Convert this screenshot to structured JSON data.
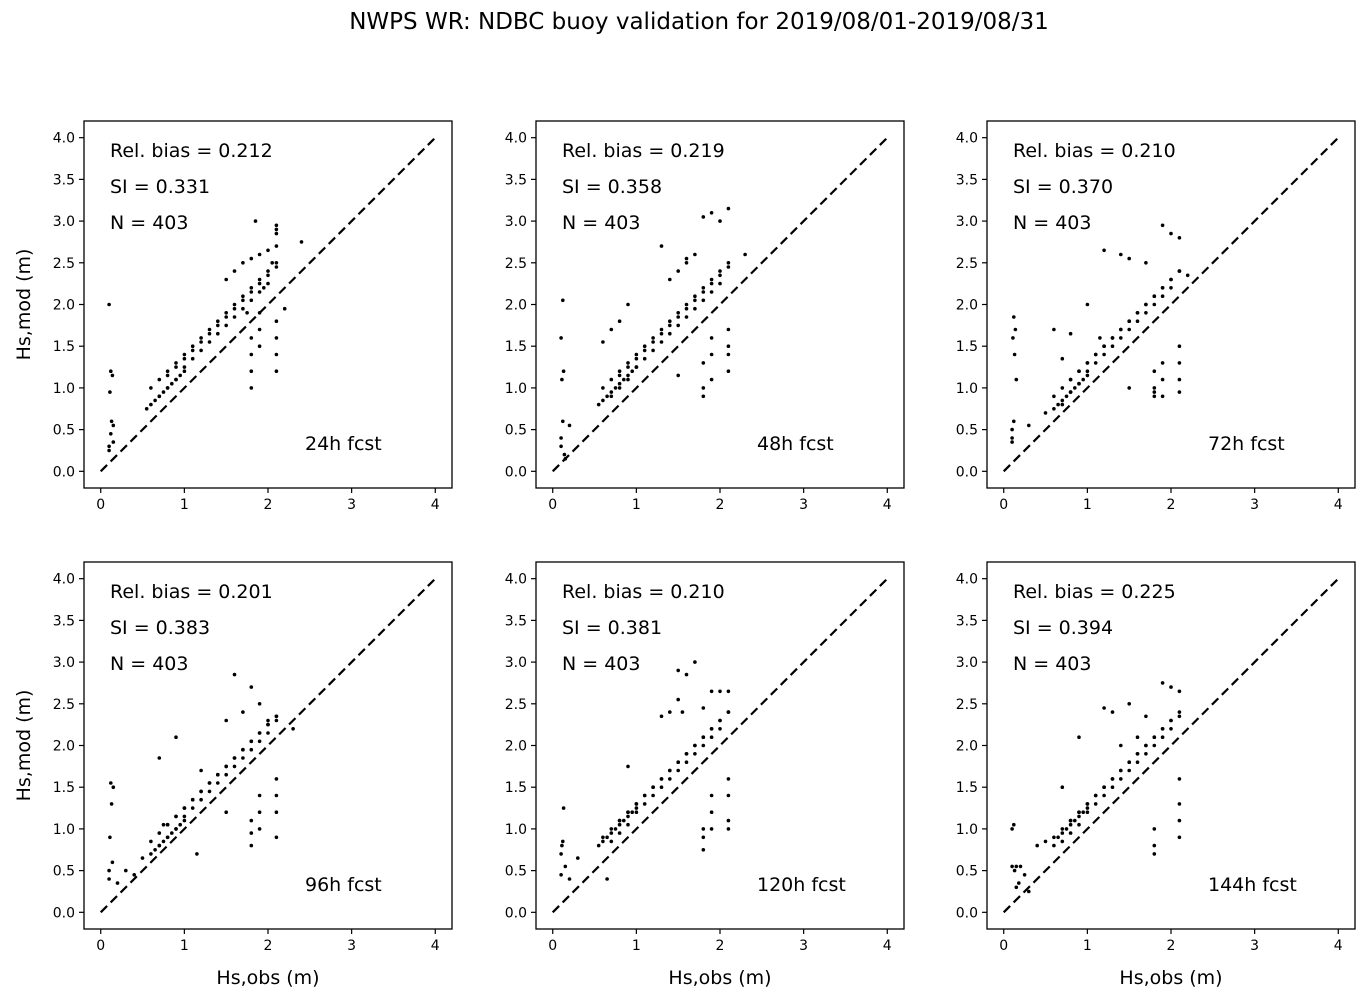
{
  "figure": {
    "title": "NWPS WR: NDBC buoy validation for 2019/08/01-2019/08/31"
  },
  "chart_data": [
    {
      "type": "scatter",
      "panel": "top-left",
      "forecast_label": "24h fcst",
      "stats": {
        "rel_bias": "Rel. bias =  0.212",
        "si": "SI =  0.331",
        "n": "N = 403"
      },
      "xlabel": "",
      "ylabel": "Hs,mod (m)",
      "xlim": [
        -0.2,
        4.2
      ],
      "ylim": [
        -0.2,
        4.2
      ],
      "xticks": [
        0,
        1,
        2,
        3,
        4
      ],
      "yticks": [
        0.0,
        0.5,
        1.0,
        1.5,
        2.0,
        2.5,
        3.0,
        3.5,
        4.0
      ],
      "reference_line": {
        "style": "dashed",
        "from": [
          0,
          0
        ],
        "to": [
          4,
          4
        ]
      },
      "x": [
        0.1,
        0.1,
        0.12,
        0.15,
        0.13,
        0.11,
        0.14,
        0.12,
        0.1,
        0.15,
        0.55,
        0.6,
        0.65,
        0.7,
        0.75,
        0.8,
        0.85,
        0.9,
        0.95,
        1.0,
        0.6,
        0.7,
        0.8,
        0.9,
        1.0,
        1.1,
        1.2,
        1.3,
        1.4,
        1.5,
        1.6,
        1.7,
        1.8,
        1.9,
        2.0,
        2.1,
        0.7,
        0.8,
        0.9,
        1.0,
        1.1,
        1.2,
        1.3,
        1.4,
        1.5,
        1.6,
        1.7,
        1.8,
        1.9,
        2.0,
        0.8,
        0.9,
        1.0,
        1.1,
        1.2,
        1.3,
        1.4,
        1.5,
        1.6,
        1.7,
        1.8,
        1.9,
        2.0,
        2.1,
        1.8,
        1.8,
        1.8,
        1.8,
        1.9,
        1.9,
        1.9,
        2.1,
        2.1,
        2.1,
        2.1,
        2.1,
        2.1,
        1.5,
        1.6,
        1.7,
        1.8,
        1.9,
        2.0,
        2.05,
        2.1,
        2.4,
        1.85,
        2.1,
        1.75,
        1.95,
        2.2
      ],
      "y": [
        0.25,
        0.3,
        0.45,
        0.55,
        0.6,
        0.95,
        1.15,
        1.2,
        2.0,
        0.35,
        0.75,
        0.8,
        0.85,
        0.9,
        0.95,
        1.0,
        1.05,
        1.1,
        1.15,
        1.2,
        1.0,
        1.1,
        1.2,
        1.3,
        1.4,
        1.5,
        1.6,
        1.7,
        1.8,
        1.9,
        2.0,
        2.1,
        2.2,
        2.3,
        2.4,
        2.5,
        0.9,
        1.0,
        1.1,
        1.25,
        1.35,
        1.45,
        1.55,
        1.65,
        1.75,
        1.85,
        1.95,
        2.05,
        2.15,
        2.25,
        1.15,
        1.25,
        1.35,
        1.45,
        1.55,
        1.65,
        1.75,
        1.85,
        1.95,
        2.05,
        2.15,
        2.25,
        2.35,
        2.45,
        1.0,
        1.2,
        1.4,
        1.6,
        1.5,
        1.7,
        1.9,
        1.2,
        1.4,
        1.6,
        1.8,
        2.7,
        2.9,
        2.3,
        2.4,
        2.5,
        2.55,
        2.6,
        2.65,
        2.5,
        2.85,
        2.75,
        3.0,
        2.95,
        1.9,
        2.2,
        1.95
      ]
    },
    {
      "type": "scatter",
      "panel": "top-middle",
      "forecast_label": "48h fcst",
      "stats": {
        "rel_bias": "Rel. bias =  0.219",
        "si": "SI =  0.358",
        "n": "N = 403"
      },
      "xlabel": "",
      "ylabel": "",
      "xlim": [
        -0.2,
        4.2
      ],
      "ylim": [
        -0.2,
        4.2
      ],
      "xticks": [
        0,
        1,
        2,
        3,
        4
      ],
      "yticks": [
        0.0,
        0.5,
        1.0,
        1.5,
        2.0,
        2.5,
        3.0,
        3.5,
        4.0
      ],
      "reference_line": {
        "style": "dashed",
        "from": [
          0,
          0
        ],
        "to": [
          4,
          4
        ]
      },
      "x": [
        0.1,
        0.1,
        0.12,
        0.15,
        0.13,
        0.11,
        0.14,
        0.12,
        0.1,
        0.2,
        0.55,
        0.6,
        0.65,
        0.7,
        0.75,
        0.8,
        0.85,
        0.9,
        0.95,
        1.0,
        0.6,
        0.7,
        0.8,
        0.9,
        1.0,
        1.1,
        1.2,
        1.3,
        1.4,
        1.5,
        1.6,
        1.7,
        1.8,
        1.9,
        2.0,
        2.1,
        0.7,
        0.8,
        0.9,
        1.0,
        1.1,
        1.2,
        1.3,
        1.4,
        1.5,
        1.6,
        1.7,
        1.8,
        1.9,
        2.0,
        0.8,
        0.9,
        1.0,
        1.1,
        1.2,
        1.3,
        1.4,
        1.5,
        1.6,
        1.7,
        1.8,
        1.9,
        2.0,
        2.1,
        1.8,
        1.8,
        1.8,
        1.9,
        1.9,
        1.9,
        2.1,
        2.1,
        2.1,
        2.1,
        1.4,
        1.5,
        1.6,
        1.7,
        1.8,
        1.9,
        2.0,
        2.1,
        2.3,
        1.3,
        1.6,
        0.7,
        0.8,
        0.9,
        0.6,
        1.5
      ],
      "y": [
        0.3,
        0.4,
        0.6,
        0.15,
        1.2,
        1.1,
        0.2,
        2.05,
        1.6,
        0.55,
        0.8,
        0.85,
        0.9,
        0.95,
        1.0,
        1.05,
        1.1,
        1.15,
        1.2,
        1.25,
        1.0,
        1.1,
        1.2,
        1.3,
        1.4,
        1.5,
        1.6,
        1.7,
        1.8,
        1.9,
        2.0,
        2.1,
        2.2,
        2.3,
        2.4,
        2.5,
        0.9,
        1.0,
        1.1,
        1.25,
        1.35,
        1.45,
        1.55,
        1.65,
        1.75,
        1.85,
        1.95,
        2.05,
        2.15,
        2.25,
        1.15,
        1.25,
        1.35,
        1.45,
        1.55,
        1.65,
        1.75,
        1.85,
        1.95,
        2.05,
        2.15,
        2.25,
        2.35,
        2.45,
        0.9,
        1.0,
        1.3,
        1.1,
        1.4,
        1.6,
        1.2,
        1.4,
        1.5,
        1.7,
        2.3,
        2.4,
        2.5,
        2.6,
        3.05,
        3.1,
        3.0,
        3.15,
        2.6,
        2.7,
        2.55,
        1.7,
        1.8,
        2.0,
        1.55,
        1.15
      ]
    },
    {
      "type": "scatter",
      "panel": "top-right",
      "forecast_label": "72h fcst",
      "stats": {
        "rel_bias": "Rel. bias =  0.210",
        "si": "SI =  0.370",
        "n": "N = 403"
      },
      "xlabel": "",
      "ylabel": "",
      "xlim": [
        -0.2,
        4.2
      ],
      "ylim": [
        -0.2,
        4.2
      ],
      "xticks": [
        0,
        1,
        2,
        3,
        4
      ],
      "yticks": [
        0.0,
        0.5,
        1.0,
        1.5,
        2.0,
        2.5,
        3.0,
        3.5,
        4.0
      ],
      "reference_line": {
        "style": "dashed",
        "from": [
          0,
          0
        ],
        "to": [
          4,
          4
        ]
      },
      "x": [
        0.1,
        0.1,
        0.12,
        0.15,
        0.13,
        0.11,
        0.14,
        0.12,
        0.1,
        0.3,
        0.5,
        0.6,
        0.65,
        0.7,
        0.75,
        0.8,
        0.85,
        0.9,
        0.95,
        1.0,
        0.6,
        0.7,
        0.8,
        0.9,
        1.0,
        1.1,
        1.2,
        1.3,
        1.4,
        1.5,
        1.6,
        1.7,
        1.8,
        1.9,
        2.0,
        2.1,
        0.7,
        0.8,
        0.9,
        1.0,
        1.1,
        1.2,
        1.3,
        1.4,
        1.5,
        1.6,
        1.7,
        1.8,
        1.9,
        2.0,
        0.8,
        0.9,
        1.0,
        1.1,
        1.2,
        1.3,
        1.4,
        1.5,
        1.6,
        1.7,
        1.8,
        1.9,
        2.0,
        2.1,
        1.8,
        1.8,
        1.8,
        1.9,
        1.9,
        1.9,
        2.1,
        2.1,
        2.1,
        2.1,
        1.2,
        1.4,
        1.5,
        1.7,
        1.9,
        2.0,
        2.1,
        2.2,
        0.6,
        0.8,
        0.7,
        1.0,
        1.15,
        1.5,
        1.8
      ],
      "y": [
        0.35,
        0.4,
        0.6,
        1.1,
        1.4,
        1.6,
        1.7,
        1.85,
        0.5,
        0.55,
        0.7,
        0.75,
        0.8,
        0.85,
        0.9,
        0.95,
        1.0,
        1.05,
        1.1,
        1.15,
        0.9,
        1.0,
        1.1,
        1.2,
        1.3,
        1.4,
        1.5,
        1.6,
        1.7,
        1.8,
        1.9,
        2.0,
        2.1,
        2.2,
        2.3,
        2.4,
        0.8,
        0.95,
        1.05,
        1.2,
        1.3,
        1.4,
        1.5,
        1.6,
        1.7,
        1.8,
        1.9,
        2.0,
        2.1,
        2.2,
        1.1,
        1.2,
        1.3,
        1.4,
        1.5,
        1.6,
        1.7,
        1.8,
        1.9,
        2.0,
        2.1,
        2.2,
        2.3,
        2.4,
        0.9,
        1.0,
        1.2,
        0.9,
        1.1,
        1.3,
        1.1,
        1.3,
        1.5,
        0.95,
        2.65,
        2.6,
        2.55,
        2.5,
        2.95,
        2.85,
        2.8,
        2.35,
        1.7,
        1.65,
        1.35,
        2.0,
        1.6,
        1.0,
        0.95
      ]
    },
    {
      "type": "scatter",
      "panel": "bottom-left",
      "forecast_label": "96h fcst",
      "stats": {
        "rel_bias": "Rel. bias =  0.201",
        "si": "SI =  0.383",
        "n": "N = 403"
      },
      "xlabel": "Hs,obs (m)",
      "ylabel": "Hs,mod (m)",
      "xlim": [
        -0.2,
        4.2
      ],
      "ylim": [
        -0.2,
        4.2
      ],
      "xticks": [
        0,
        1,
        2,
        3,
        4
      ],
      "yticks": [
        0.0,
        0.5,
        1.0,
        1.5,
        2.0,
        2.5,
        3.0,
        3.5,
        4.0
      ],
      "reference_line": {
        "style": "dashed",
        "from": [
          0,
          0
        ],
        "to": [
          4,
          4
        ]
      },
      "x": [
        0.1,
        0.1,
        0.12,
        0.15,
        0.13,
        0.11,
        0.14,
        0.2,
        0.3,
        0.4,
        0.5,
        0.6,
        0.65,
        0.7,
        0.75,
        0.8,
        0.85,
        0.9,
        0.95,
        1.0,
        0.6,
        0.7,
        0.8,
        0.9,
        1.0,
        1.1,
        1.2,
        1.3,
        1.4,
        1.5,
        1.6,
        1.7,
        1.8,
        1.9,
        2.0,
        2.1,
        0.7,
        0.8,
        0.9,
        1.0,
        1.1,
        1.2,
        1.3,
        1.4,
        1.5,
        1.6,
        1.7,
        1.8,
        1.9,
        2.0,
        0.8,
        0.9,
        1.0,
        1.1,
        1.2,
        1.3,
        1.4,
        1.5,
        1.6,
        1.7,
        1.8,
        1.9,
        2.0,
        2.1,
        1.8,
        1.8,
        1.8,
        1.9,
        1.9,
        1.9,
        2.1,
        2.1,
        2.1,
        2.1,
        1.5,
        1.6,
        1.7,
        1.8,
        1.9,
        2.0,
        2.1,
        2.3,
        0.7,
        0.9,
        1.15,
        1.2,
        1.5,
        0.75
      ],
      "y": [
        0.4,
        0.5,
        1.55,
        1.5,
        1.3,
        0.9,
        0.6,
        0.35,
        0.5,
        0.45,
        0.65,
        0.7,
        0.75,
        0.8,
        0.85,
        0.9,
        0.95,
        1.0,
        1.05,
        1.1,
        0.85,
        0.95,
        1.05,
        1.15,
        1.25,
        1.35,
        1.45,
        1.55,
        1.65,
        1.75,
        1.85,
        1.95,
        2.05,
        2.15,
        2.25,
        2.35,
        0.8,
        0.9,
        1.0,
        1.15,
        1.25,
        1.35,
        1.45,
        1.55,
        1.65,
        1.75,
        1.85,
        1.95,
        2.05,
        2.15,
        1.05,
        1.15,
        1.25,
        1.35,
        1.45,
        1.55,
        1.65,
        1.75,
        1.85,
        1.95,
        2.05,
        2.15,
        2.25,
        2.3,
        0.8,
        0.95,
        1.1,
        1.0,
        1.2,
        1.4,
        0.9,
        1.2,
        1.4,
        1.6,
        2.3,
        2.85,
        2.4,
        2.7,
        2.5,
        2.3,
        2.35,
        2.2,
        1.85,
        2.1,
        0.7,
        1.7,
        1.2,
        1.05
      ]
    },
    {
      "type": "scatter",
      "panel": "bottom-middle",
      "forecast_label": "120h fcst",
      "stats": {
        "rel_bias": "Rel. bias =  0.210",
        "si": "SI =  0.381",
        "n": "N = 403"
      },
      "xlabel": "Hs,obs (m)",
      "ylabel": "",
      "xlim": [
        -0.2,
        4.2
      ],
      "ylim": [
        -0.2,
        4.2
      ],
      "xticks": [
        0,
        1,
        2,
        3,
        4
      ],
      "yticks": [
        0.0,
        0.5,
        1.0,
        1.5,
        2.0,
        2.5,
        3.0,
        3.5,
        4.0
      ],
      "reference_line": {
        "style": "dashed",
        "from": [
          0,
          0
        ],
        "to": [
          4,
          4
        ]
      },
      "x": [
        0.1,
        0.1,
        0.12,
        0.15,
        0.13,
        0.11,
        0.2,
        0.3,
        0.55,
        0.6,
        0.65,
        0.7,
        0.75,
        0.8,
        0.85,
        0.9,
        0.95,
        1.0,
        0.6,
        0.7,
        0.8,
        0.9,
        1.0,
        1.1,
        1.2,
        1.3,
        1.4,
        1.5,
        1.6,
        1.7,
        1.8,
        1.9,
        2.0,
        2.1,
        0.7,
        0.8,
        0.9,
        1.0,
        1.1,
        1.2,
        1.3,
        1.4,
        1.5,
        1.6,
        1.7,
        1.8,
        1.9,
        2.0,
        0.8,
        0.9,
        1.0,
        1.1,
        1.2,
        1.3,
        1.4,
        1.5,
        1.6,
        1.7,
        1.8,
        1.9,
        2.0,
        2.1,
        1.8,
        1.8,
        1.8,
        1.9,
        1.9,
        1.9,
        2.1,
        2.1,
        2.1,
        2.1,
        1.3,
        1.4,
        1.5,
        1.6,
        1.7,
        1.8,
        1.9,
        2.0,
        2.1,
        0.65,
        0.9,
        1.5,
        1.55
      ],
      "y": [
        0.45,
        0.7,
        0.85,
        0.55,
        1.25,
        0.8,
        0.4,
        0.65,
        0.8,
        0.85,
        0.9,
        0.95,
        1.0,
        1.05,
        1.1,
        1.15,
        1.2,
        1.25,
        0.9,
        1.0,
        1.1,
        1.2,
        1.3,
        1.4,
        1.5,
        1.6,
        1.7,
        1.8,
        1.9,
        2.0,
        2.1,
        2.2,
        2.3,
        2.4,
        0.85,
        0.95,
        1.05,
        1.2,
        1.3,
        1.4,
        1.5,
        1.6,
        1.7,
        1.8,
        1.9,
        2.0,
        2.1,
        2.2,
        1.1,
        1.2,
        1.3,
        1.4,
        1.5,
        1.6,
        1.7,
        1.8,
        1.9,
        2.0,
        2.1,
        2.2,
        2.3,
        2.4,
        0.75,
        0.9,
        1.0,
        1.0,
        1.2,
        1.4,
        1.0,
        1.1,
        1.4,
        1.6,
        2.35,
        2.4,
        2.55,
        2.85,
        3.0,
        2.45,
        2.65,
        2.65,
        2.65,
        0.4,
        1.75,
        2.9,
        2.4
      ]
    },
    {
      "type": "scatter",
      "panel": "bottom-right",
      "forecast_label": "144h fcst",
      "stats": {
        "rel_bias": "Rel. bias =  0.225",
        "si": "SI =  0.394",
        "n": "N = 403"
      },
      "xlabel": "Hs,obs (m)",
      "ylabel": "",
      "xlim": [
        -0.2,
        4.2
      ],
      "ylim": [
        -0.2,
        4.2
      ],
      "xticks": [
        0,
        1,
        2,
        3,
        4
      ],
      "yticks": [
        0.0,
        0.5,
        1.0,
        1.5,
        2.0,
        2.5,
        3.0,
        3.5,
        4.0
      ],
      "reference_line": {
        "style": "dashed",
        "from": [
          0,
          0
        ],
        "to": [
          4,
          4
        ]
      },
      "x": [
        0.1,
        0.12,
        0.15,
        0.13,
        0.2,
        0.25,
        0.15,
        0.18,
        0.1,
        0.3,
        0.4,
        0.5,
        0.6,
        0.65,
        0.7,
        0.75,
        0.8,
        0.85,
        0.9,
        0.95,
        1.0,
        0.6,
        0.7,
        0.8,
        0.9,
        1.0,
        1.1,
        1.2,
        1.3,
        1.4,
        1.5,
        1.6,
        1.7,
        1.8,
        1.9,
        2.0,
        2.1,
        0.7,
        0.8,
        0.9,
        1.0,
        1.1,
        1.2,
        1.3,
        1.4,
        1.5,
        1.6,
        1.7,
        1.8,
        1.9,
        2.0,
        0.8,
        0.9,
        1.0,
        1.1,
        1.2,
        1.3,
        1.4,
        1.5,
        1.6,
        1.7,
        1.8,
        1.9,
        2.0,
        2.1,
        1.8,
        1.8,
        1.8,
        2.1,
        2.1,
        2.1,
        2.1,
        0.7,
        0.9,
        1.2,
        1.3,
        1.5,
        1.7,
        1.9,
        2.0,
        2.1,
        1.4,
        1.6
      ],
      "y": [
        1.0,
        1.05,
        0.55,
        0.5,
        0.55,
        0.45,
        0.3,
        0.35,
        0.55,
        0.25,
        0.8,
        0.85,
        0.8,
        0.9,
        0.95,
        1.0,
        1.05,
        1.1,
        1.15,
        1.2,
        1.25,
        0.9,
        1.0,
        1.1,
        1.2,
        1.3,
        1.4,
        1.5,
        1.6,
        1.7,
        1.8,
        1.9,
        2.0,
        2.1,
        2.2,
        2.3,
        2.35,
        0.85,
        0.95,
        1.05,
        1.2,
        1.3,
        1.4,
        1.5,
        1.6,
        1.7,
        1.8,
        1.9,
        2.0,
        2.1,
        2.2,
        1.1,
        1.2,
        1.3,
        1.4,
        1.5,
        1.6,
        1.7,
        1.8,
        1.9,
        2.0,
        2.1,
        2.2,
        2.3,
        2.4,
        0.7,
        0.8,
        1.0,
        0.9,
        1.1,
        1.3,
        1.6,
        1.5,
        2.1,
        2.45,
        2.4,
        2.5,
        2.35,
        2.75,
        2.7,
        2.65,
        2.0,
        2.1
      ]
    }
  ]
}
